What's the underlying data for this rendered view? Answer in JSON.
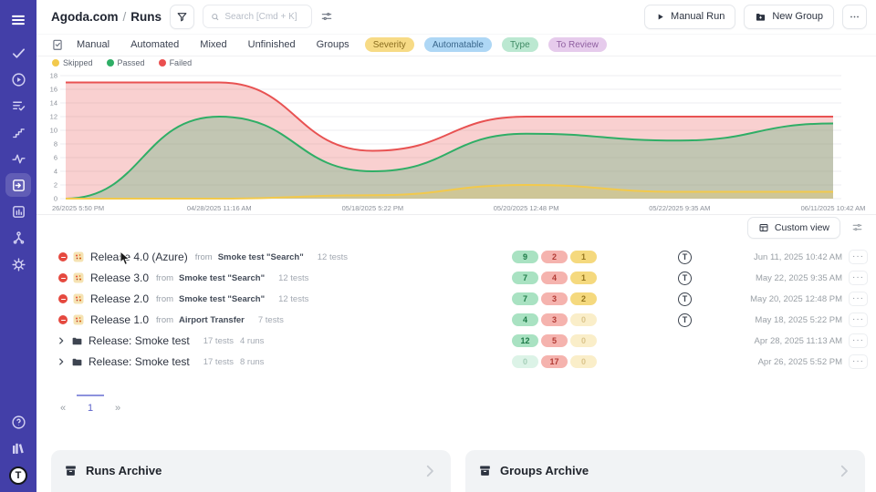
{
  "topbar": {
    "project": "Agoda.com",
    "separator": "/",
    "page": "Runs",
    "search_placeholder": "Search [Cmd + K]",
    "manual_run_label": "Manual Run",
    "new_group_label": "New Group"
  },
  "tabs": [
    "Manual",
    "Automated",
    "Mixed",
    "Unfinished",
    "Groups"
  ],
  "filter_chips": [
    {
      "label": "Severity",
      "kind": "severity",
      "bg": "#f7db86"
    },
    {
      "label": "Automatable",
      "kind": "automatable",
      "bg": "#aed7f5"
    },
    {
      "label": "Type",
      "kind": "type",
      "bg": "#bbe8d1"
    },
    {
      "label": "To Review",
      "kind": "to-review",
      "bg": "#e6cbec"
    }
  ],
  "legend": [
    {
      "label": "Skipped",
      "kind": "skipped",
      "color": "#f2c94c"
    },
    {
      "label": "Passed",
      "kind": "passed",
      "color": "#2fae66"
    },
    {
      "label": "Failed",
      "kind": "failed",
      "color": "#ea4f4f"
    }
  ],
  "chart_data": {
    "type": "area",
    "x_labels": [
      "26/2025 5:50 PM",
      "04/28/2025 11:16 AM",
      "05/18/2025 5:22 PM",
      "05/20/2025 12:48 PM",
      "05/22/2025 9:35 AM",
      "06/11/2025 10:42 AM"
    ],
    "series": [
      {
        "name": "Failed",
        "color": "#e85252",
        "values": [
          17,
          17,
          7,
          12,
          12,
          12
        ]
      },
      {
        "name": "Passed",
        "color": "#2fae66",
        "values": [
          0,
          12,
          4,
          9.5,
          8.5,
          11
        ]
      },
      {
        "name": "Skipped",
        "color": "#f2c94c",
        "values": [
          0,
          0,
          0.5,
          2,
          1,
          1
        ]
      }
    ],
    "ylim": [
      0,
      18
    ],
    "ytick_step": 2,
    "grid": true,
    "legend_position": "top-left"
  },
  "viewbar": {
    "custom_view_label": "Custom view"
  },
  "runs": [
    {
      "type": "run",
      "status": "failed",
      "title": "Release 4.0 (Azure)",
      "from_label": "from",
      "source": "Smoke test \"Search\"",
      "tests": "12 tests",
      "badges": [
        {
          "value": "9",
          "kind": "passed"
        },
        {
          "value": "2",
          "kind": "failed"
        },
        {
          "value": "1",
          "kind": "skipped"
        }
      ],
      "reporter": "T",
      "date": "Jun 11, 2025 10:42 AM"
    },
    {
      "type": "run",
      "status": "failed",
      "title": "Release 3.0",
      "from_label": "from",
      "source": "Smoke test \"Search\"",
      "tests": "12 tests",
      "badges": [
        {
          "value": "7",
          "kind": "passed"
        },
        {
          "value": "4",
          "kind": "failed"
        },
        {
          "value": "1",
          "kind": "skipped"
        }
      ],
      "reporter": "T",
      "date": "May 22, 2025 9:35 AM"
    },
    {
      "type": "run",
      "status": "failed",
      "title": "Release 2.0",
      "from_label": "from",
      "source": "Smoke test \"Search\"",
      "tests": "12 tests",
      "badges": [
        {
          "value": "7",
          "kind": "passed"
        },
        {
          "value": "3",
          "kind": "failed"
        },
        {
          "value": "2",
          "kind": "skipped"
        }
      ],
      "reporter": "T",
      "date": "May 20, 2025 12:48 PM"
    },
    {
      "type": "run",
      "status": "failed",
      "title": "Release 1.0",
      "from_label": "from",
      "source": "Airport Transfer",
      "tests": "7 tests",
      "badges": [
        {
          "value": "4",
          "kind": "passed"
        },
        {
          "value": "3",
          "kind": "failed"
        },
        {
          "value": "0",
          "kind": "skipped-muted"
        }
      ],
      "reporter": "T",
      "date": "May 18, 2025 5:22 PM"
    },
    {
      "type": "group",
      "title": "Release: Smoke test",
      "tests": "17 tests",
      "runs_count": "4 runs",
      "badges": [
        {
          "value": "12",
          "kind": "passed"
        },
        {
          "value": "5",
          "kind": "failed"
        },
        {
          "value": "0",
          "kind": "skipped-muted"
        }
      ],
      "date": "Apr 28, 2025 11:13 AM"
    },
    {
      "type": "group",
      "title": "Release: Smoke test",
      "tests": "17 tests",
      "runs_count": "8 runs",
      "badges": [
        {
          "value": "0",
          "kind": "passed-muted"
        },
        {
          "value": "17",
          "kind": "failed"
        },
        {
          "value": "0",
          "kind": "skipped-muted"
        }
      ],
      "date": "Apr 26, 2025 5:52 PM"
    }
  ],
  "pagination": {
    "prev": "«",
    "current": "1",
    "next": "»"
  },
  "archives": [
    {
      "title": "Runs Archive"
    },
    {
      "title": "Groups Archive"
    }
  ],
  "glyphs": {
    "more": "···",
    "chevron": "›"
  },
  "colors": {
    "sidebar": "#433fa8",
    "accent": "#5b62c9",
    "failed": "#e85252",
    "passed": "#2fae66",
    "skipped": "#f2c94c"
  }
}
